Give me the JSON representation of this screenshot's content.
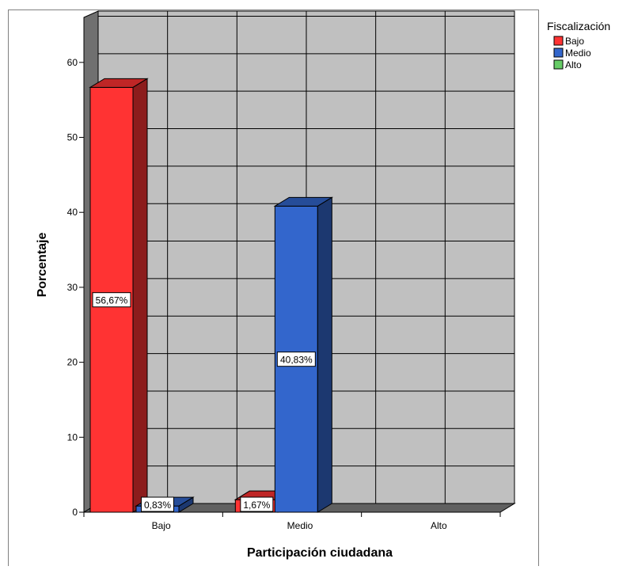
{
  "chart_data": {
    "type": "bar",
    "categories": [
      "Bajo",
      "Medio",
      "Alto"
    ],
    "series": [
      {
        "name": "Bajo",
        "values": [
          56.67,
          1.67,
          0
        ]
      },
      {
        "name": "Medio",
        "values": [
          0.83,
          40.83,
          0
        ]
      },
      {
        "name": "Alto",
        "values": [
          0,
          0,
          0
        ]
      }
    ],
    "data_labels": [
      {
        "category": "Bajo",
        "series": "Bajo",
        "text": "56,67%"
      },
      {
        "category": "Bajo",
        "series": "Medio",
        "text": "0,83%"
      },
      {
        "category": "Medio",
        "series": "Bajo",
        "text": "1,67%"
      },
      {
        "category": "Medio",
        "series": "Medio",
        "text": "40,83%"
      }
    ],
    "title": "",
    "xlabel": "Participación ciudadana",
    "ylabel": "Porcentaje",
    "ylim": [
      0,
      66
    ],
    "yticks": [
      0,
      10,
      20,
      30,
      40,
      50,
      60
    ],
    "grid": true,
    "three_d": true,
    "legend": {
      "title": "Fiscalización",
      "position": "top-right"
    },
    "colors": {
      "Bajo": "#ff3333",
      "Medio": "#3366cc",
      "Alto": "#66cc66",
      "plot_background": "#c0c0c0",
      "grid": "#000000"
    }
  }
}
